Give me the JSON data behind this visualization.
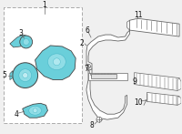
{
  "bg_color": "#f0f0f0",
  "line_color": "#666666",
  "cyan": "#6acfda",
  "cyan_dark": "#4ab8c8",
  "cyan_light": "#90dde6",
  "outline": "#444444",
  "label_color": "#111111",
  "label_fs": 5.5,
  "fig_w": 2.0,
  "fig_h": 1.47,
  "dpi": 100
}
